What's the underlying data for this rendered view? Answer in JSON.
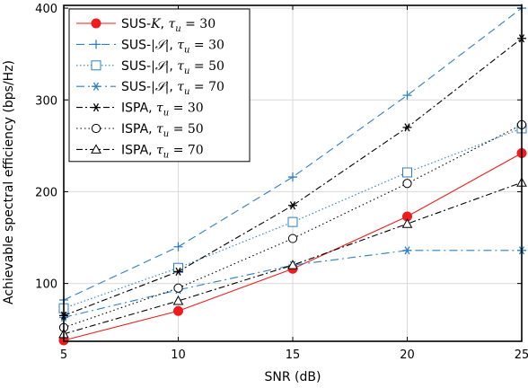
{
  "chart_data": {
    "type": "line",
    "xlabel": "SNR (dB)",
    "ylabel": "Achievable spectral efficiency (bps/Hz)",
    "xlim": [
      5,
      25
    ],
    "ylim": [
      37,
      403
    ],
    "xticks": [
      5,
      10,
      15,
      20,
      25
    ],
    "yticks": [
      100,
      200,
      300,
      400
    ],
    "grid": true,
    "legend_position": "top-left",
    "x": [
      5,
      10,
      15,
      20,
      25
    ],
    "series": [
      {
        "name": "SUS-K, τ_u = 30",
        "label_prefix": "SUS-",
        "label_italic": "K",
        "label_tau": "30",
        "color": "#ee1c1c",
        "dash": "",
        "marker": "filled-circle",
        "values": [
          38,
          70,
          116,
          173,
          242
        ]
      },
      {
        "name": "SUS-|S|, τ_u = 30",
        "label_prefix": "SUS-",
        "label_italic": "|𝒮|",
        "label_tau": "30",
        "color": "#2f7fbf",
        "dash": "9,5",
        "marker": "plus",
        "values": [
          82,
          140,
          216,
          305,
          400
        ]
      },
      {
        "name": "SUS-|S|, τ_u = 50",
        "label_prefix": "SUS-",
        "label_italic": "|𝒮|",
        "label_tau": "50",
        "color": "#2f7fbf",
        "dash": "1.5,2.5",
        "marker": "square",
        "values": [
          73,
          117,
          167,
          221,
          269
        ]
      },
      {
        "name": "SUS-|S|, τ_u = 70",
        "label_prefix": "SUS-",
        "label_italic": "|𝒮|",
        "label_tau": "70",
        "color": "#2f7fbf",
        "dash": "9,4,2,4",
        "marker": "asterisk",
        "values": [
          63,
          93,
          120,
          136,
          136
        ]
      },
      {
        "name": "ISPA, τ_u = 30",
        "label_prefix": "ISPA",
        "label_italic": "",
        "label_tau": "30",
        "color": "#000000",
        "dash": "7,3,2,3",
        "marker": "asterisk",
        "values": [
          65,
          113,
          185,
          270,
          367
        ]
      },
      {
        "name": "ISPA, τ_u = 50",
        "label_prefix": "ISPA",
        "label_italic": "",
        "label_tau": "50",
        "color": "#000000",
        "dash": "1.5,3",
        "marker": "circle",
        "values": [
          52,
          95,
          149,
          209,
          273
        ]
      },
      {
        "name": "ISPA, τ_u = 70",
        "label_prefix": "ISPA",
        "label_italic": "",
        "label_tau": "70",
        "color": "#000000",
        "dash": "7,3,2,3",
        "marker": "triangle",
        "values": [
          45,
          81,
          120,
          165,
          210
        ]
      }
    ]
  }
}
